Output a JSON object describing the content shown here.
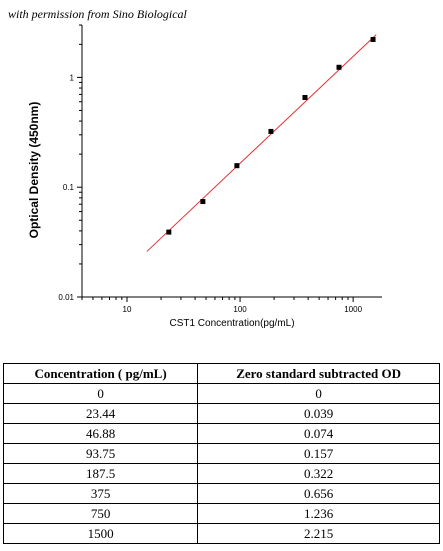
{
  "credit": "with permission from Sino Biological",
  "chart_data": {
    "type": "scatter",
    "xlabel": "CST1 Concentration(pg/mL)",
    "ylabel": "Optical Density (450nm)",
    "xscale": "log",
    "yscale": "log",
    "xlim": [
      4,
      1800
    ],
    "ylim": [
      0.01,
      3
    ],
    "x_ticks": [
      10,
      100,
      1000
    ],
    "x_tick_labels": [
      "10",
      "100",
      "1000"
    ],
    "y_ticks": [
      0.01,
      0.1,
      1
    ],
    "y_tick_labels": [
      "0.01",
      "0.1",
      "1"
    ],
    "points": {
      "x": [
        23.44,
        46.88,
        93.75,
        187.5,
        375,
        750,
        1500
      ],
      "y": [
        0.039,
        0.074,
        0.157,
        0.322,
        0.656,
        1.236,
        2.215
      ]
    },
    "fit_line": {
      "x": [
        15,
        1600
      ],
      "y": [
        0.026,
        2.45
      ]
    },
    "marker_color": "#000000",
    "line_color": "#e03030",
    "grid": false
  },
  "table": {
    "headers": [
      "Concentration ( pg/mL)",
      "Zero standard subtracted OD"
    ],
    "rows": [
      [
        "0",
        "0"
      ],
      [
        "23.44",
        "0.039"
      ],
      [
        "46.88",
        "0.074"
      ],
      [
        "93.75",
        "0.157"
      ],
      [
        "187.5",
        "0.322"
      ],
      [
        "375",
        "0.656"
      ],
      [
        "750",
        "1.236"
      ],
      [
        "1500",
        "2.215"
      ]
    ]
  }
}
